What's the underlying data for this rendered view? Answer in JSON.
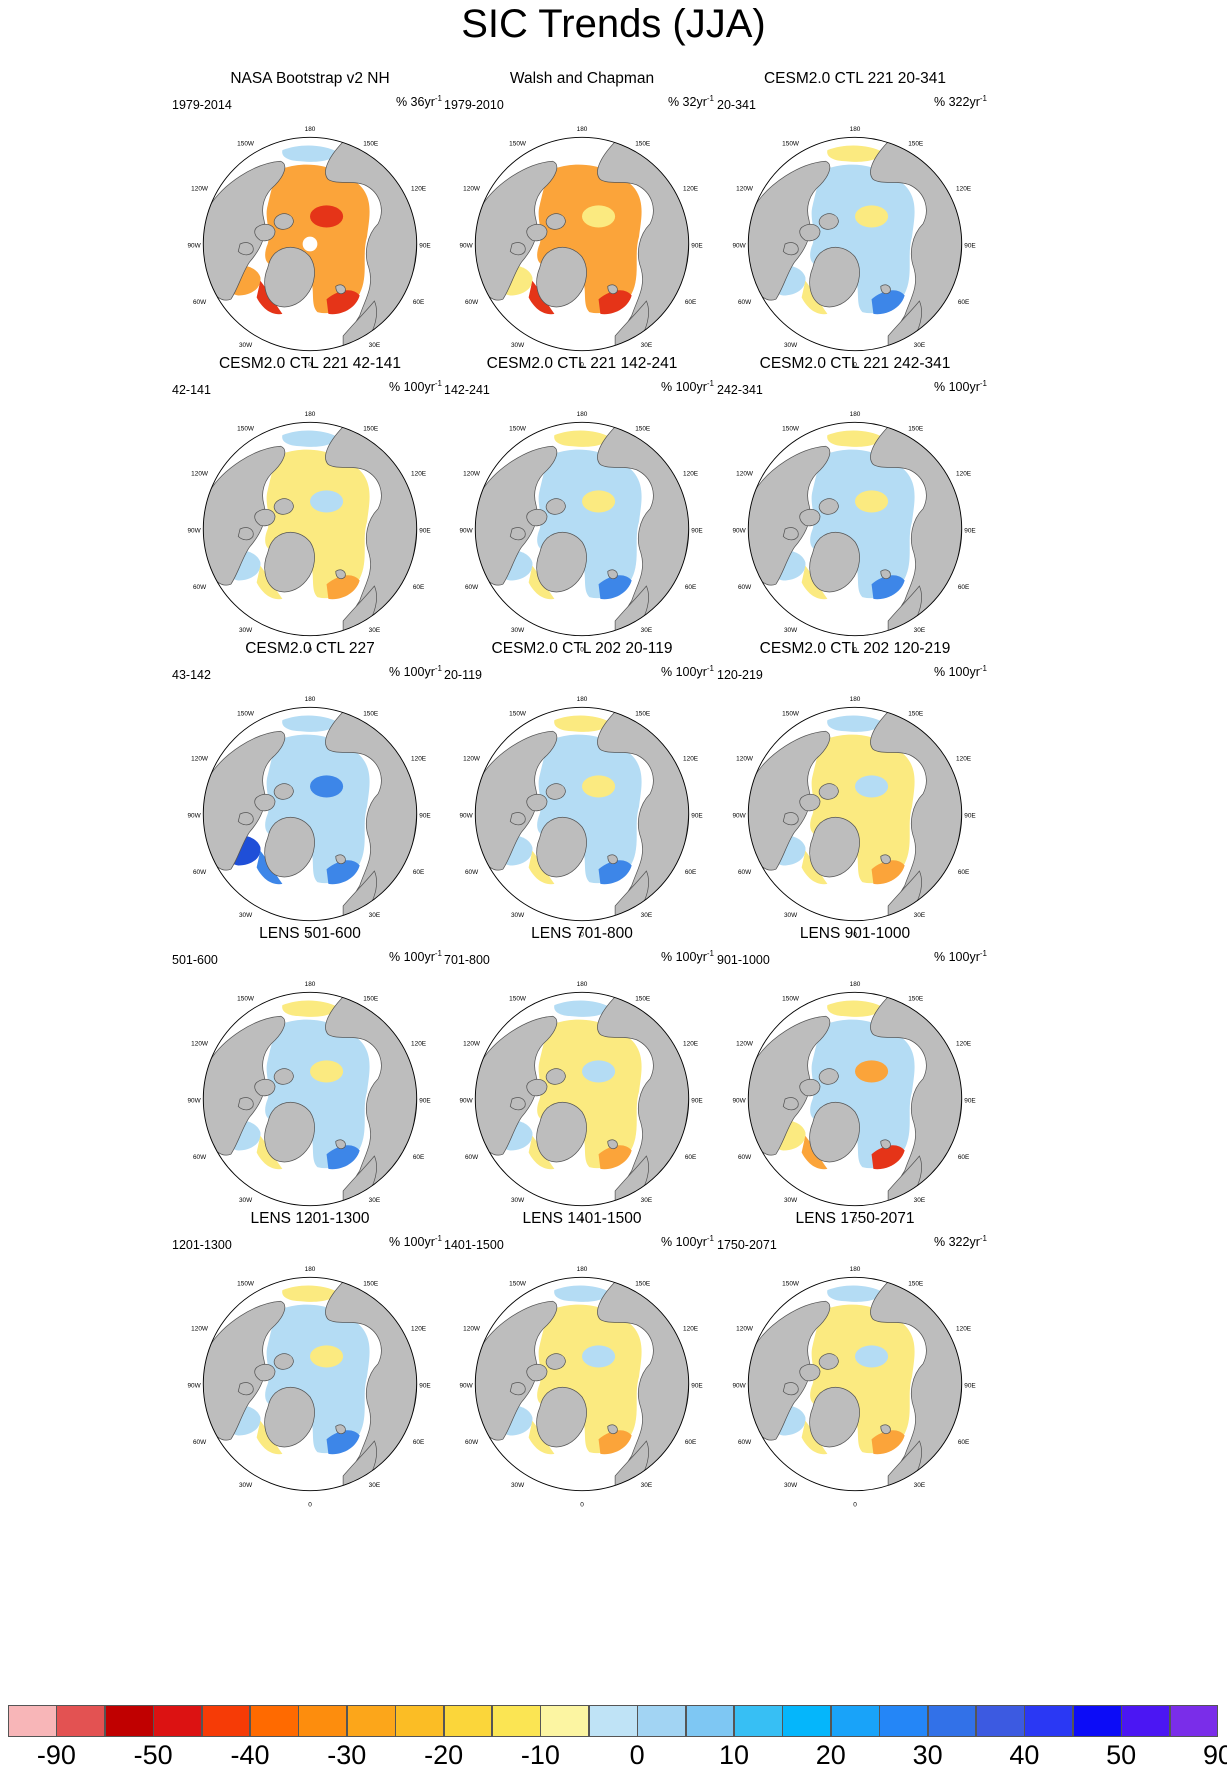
{
  "title": "SIC Trends (JJA)",
  "map_labels": {
    "lon_180": "180",
    "lon_150w": "150W",
    "lon_150e": "150E",
    "lon_120w": "120W",
    "lon_120e": "120E",
    "lon_90w": "90W",
    "lon_90e": "90E",
    "lon_60w": "60W",
    "lon_60e": "60E",
    "lon_30w": "30W",
    "lon_30e": "30E",
    "lon_0": "0"
  },
  "colors": {
    "land": "#bdbdbd",
    "ocean": "#ffffff",
    "coast": "#555555",
    "light_blue": "#b4dcf4",
    "blue": "#3d86e8",
    "dark_blue": "#1f4fd8",
    "yellow": "#fbea80",
    "orange": "#fba43a",
    "red": "#e53418"
  },
  "panels": [
    {
      "title": "NASA Bootstrap v2 NH",
      "period": "1979-2014",
      "units": "% 36yr",
      "units_exp": "-1",
      "pattern": "obs_red"
    },
    {
      "title": "Walsh and Chapman",
      "period": "1979-2010",
      "units": "% 32yr",
      "units_exp": "-1",
      "pattern": "obs_orange"
    },
    {
      "title": "CESM2.0 CTL 221 20-341",
      "period": "20-341",
      "units": "% 322yr",
      "units_exp": "-1",
      "pattern": "mixed_blue"
    },
    {
      "title": "CESM2.0 CTL 221 42-141",
      "period": "42-141",
      "units": "% 100yr",
      "units_exp": "-1",
      "pattern": "mixed_yellow"
    },
    {
      "title": "CESM2.0 CTL 221 142-241",
      "period": "142-241",
      "units": "% 100yr",
      "units_exp": "-1",
      "pattern": "mixed_blue"
    },
    {
      "title": "CESM2.0 CTL 221 242-341",
      "period": "242-341",
      "units": "% 100yr",
      "units_exp": "-1",
      "pattern": "mixed_blue"
    },
    {
      "title": "CESM2.0 CTL 227",
      "period": "43-142",
      "units": "% 100yr",
      "units_exp": "-1",
      "pattern": "strong_blue"
    },
    {
      "title": "CESM2.0 CTL 202 20-119",
      "period": "20-119",
      "units": "% 100yr",
      "units_exp": "-1",
      "pattern": "mixed_blue"
    },
    {
      "title": "CESM2.0 CTL 202 120-219",
      "period": "120-219",
      "units": "% 100yr",
      "units_exp": "-1",
      "pattern": "mixed_yellow"
    },
    {
      "title": "LENS 501-600",
      "period": "501-600",
      "units": "% 100yr",
      "units_exp": "-1",
      "pattern": "mixed_blue"
    },
    {
      "title": "LENS 701-800",
      "period": "701-800",
      "units": "% 100yr",
      "units_exp": "-1",
      "pattern": "mixed_yellow"
    },
    {
      "title": "LENS 901-1000",
      "period": "901-1000",
      "units": "% 100yr",
      "units_exp": "-1",
      "pattern": "mixed_orange"
    },
    {
      "title": "LENS 1201-1300",
      "period": "1201-1300",
      "units": "% 100yr",
      "units_exp": "-1",
      "pattern": "mixed_blue"
    },
    {
      "title": "LENS 1401-1500",
      "period": "1401-1500",
      "units": "% 100yr",
      "units_exp": "-1",
      "pattern": "mixed_yellow"
    },
    {
      "title": "LENS 1750-2071",
      "period": "1750-2071",
      "units": "% 322yr",
      "units_exp": "-1",
      "pattern": "mixed_yellow"
    }
  ],
  "colorbar": {
    "colors": [
      "#f8b6b8",
      "#e35252",
      "#c00000",
      "#dc1212",
      "#f63b06",
      "#ff6a00",
      "#fd8d0d",
      "#fca61a",
      "#fbbd25",
      "#fbd63a",
      "#fbe553",
      "#fcf5a2",
      "#bfe3f6",
      "#a2d4f3",
      "#7ec7f3",
      "#37bff4",
      "#05b6fb",
      "#19a3f9",
      "#2486f7",
      "#3271e8",
      "#3c5ae1",
      "#2a38f4",
      "#0c0cf7",
      "#4b16f3",
      "#7a2de9"
    ],
    "labels": [
      "-90",
      "-50",
      "-40",
      "-30",
      "-20",
      "-10",
      "0",
      "10",
      "20",
      "30",
      "40",
      "50",
      "90"
    ]
  }
}
